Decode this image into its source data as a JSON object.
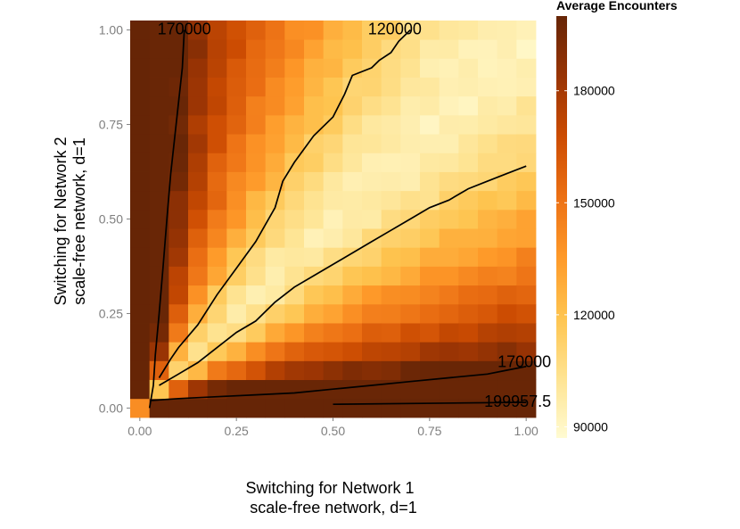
{
  "chart_data": {
    "type": "heatmap",
    "title": "",
    "xlabel": [
      "Switching for Network 1",
      "scale-free network, d=1"
    ],
    "ylabel": [
      "Switching for Network 2",
      "scale-free network, d=1"
    ],
    "xlim": [
      -0.025,
      1.025
    ],
    "ylim": [
      -0.025,
      1.025
    ],
    "x_ticks": [
      0,
      0.25,
      0.5,
      0.75,
      1
    ],
    "x_tick_labels": [
      "0.00",
      "0.25",
      "0.50",
      "0.75",
      "1.00"
    ],
    "y_ticks": [
      0,
      0.25,
      0.5,
      0.75,
      1
    ],
    "y_tick_labels": [
      "0.00",
      "0.25",
      "0.50",
      "0.75",
      "1.00"
    ],
    "grid": true,
    "grid_values": [
      0,
      0.05,
      0.1,
      0.15,
      0.2,
      0.25,
      0.3,
      0.35,
      0.4,
      0.45,
      0.5,
      0.55,
      0.6,
      0.65,
      0.7,
      0.75,
      0.8,
      0.85,
      0.9,
      0.95,
      1
    ],
    "z_description": "Average Encounters over switching grid (21 x 21)",
    "z_range": [
      87000,
      200000
    ],
    "legend": {
      "title": "Average Encounters",
      "position": "right",
      "breaks": [
        90000,
        120000,
        150000,
        180000
      ],
      "break_labels": [
        "90000",
        "120000",
        "150000",
        "180000"
      ],
      "colors": [
        "#fffbd2",
        "#fee391",
        "#fec44f",
        "#fe9929",
        "#ec7014",
        "#cc4c02",
        "#993404",
        "#662506"
      ]
    },
    "contours": [
      {
        "level_label": "170000",
        "points": [
          [
            0.025,
            0.0
          ],
          [
            0.035,
            0.06
          ],
          [
            0.04,
            0.14
          ],
          [
            0.05,
            0.25
          ],
          [
            0.06,
            0.37
          ],
          [
            0.07,
            0.5
          ],
          [
            0.08,
            0.62
          ],
          [
            0.095,
            0.76
          ],
          [
            0.11,
            0.9
          ],
          [
            0.115,
            1.0
          ]
        ]
      },
      {
        "level_label": "120000",
        "points": [
          [
            0.05,
            0.08
          ],
          [
            0.08,
            0.13
          ],
          [
            0.1,
            0.16
          ],
          [
            0.15,
            0.22
          ],
          [
            0.2,
            0.3
          ],
          [
            0.25,
            0.37
          ],
          [
            0.3,
            0.44
          ],
          [
            0.35,
            0.53
          ],
          [
            0.37,
            0.6
          ],
          [
            0.4,
            0.65
          ],
          [
            0.45,
            0.72
          ],
          [
            0.5,
            0.77
          ],
          [
            0.53,
            0.83
          ],
          [
            0.55,
            0.88
          ],
          [
            0.6,
            0.9
          ],
          [
            0.62,
            0.92
          ],
          [
            0.65,
            0.94
          ],
          [
            0.67,
            0.97
          ],
          [
            0.7,
            1.0
          ]
        ]
      },
      {
        "level_label": "120000",
        "points": [
          [
            0.05,
            0.06
          ],
          [
            0.1,
            0.09
          ],
          [
            0.15,
            0.12
          ],
          [
            0.2,
            0.16
          ],
          [
            0.25,
            0.2
          ],
          [
            0.3,
            0.23
          ],
          [
            0.35,
            0.28
          ],
          [
            0.4,
            0.32
          ],
          [
            0.45,
            0.35
          ],
          [
            0.5,
            0.38
          ],
          [
            0.55,
            0.41
          ],
          [
            0.6,
            0.44
          ],
          [
            0.65,
            0.47
          ],
          [
            0.7,
            0.5
          ],
          [
            0.75,
            0.53
          ],
          [
            0.8,
            0.55
          ],
          [
            0.85,
            0.58
          ],
          [
            0.9,
            0.6
          ],
          [
            0.95,
            0.62
          ],
          [
            1.0,
            0.64
          ]
        ]
      },
      {
        "level_label": "170000",
        "points": [
          [
            0.03,
            0.02
          ],
          [
            0.1,
            0.025
          ],
          [
            0.2,
            0.03
          ],
          [
            0.3,
            0.035
          ],
          [
            0.4,
            0.04
          ],
          [
            0.5,
            0.05
          ],
          [
            0.6,
            0.06
          ],
          [
            0.7,
            0.07
          ],
          [
            0.8,
            0.08
          ],
          [
            0.9,
            0.09
          ],
          [
            0.95,
            0.1
          ],
          [
            1.0,
            0.11
          ]
        ]
      },
      {
        "level_label": "199957.5",
        "points": [
          [
            0.5,
            0.01
          ],
          [
            1.0,
            0.015
          ]
        ]
      }
    ],
    "contour_labels": [
      {
        "text": "170000",
        "x": 0.115,
        "y": 1.0
      },
      {
        "text": "120000",
        "x": 0.66,
        "y": 1.0
      },
      {
        "text": "170000",
        "x": 1.0,
        "y": 0.12
      },
      {
        "text": "199957.5",
        "x": 1.0,
        "y": 0.015
      }
    ]
  }
}
